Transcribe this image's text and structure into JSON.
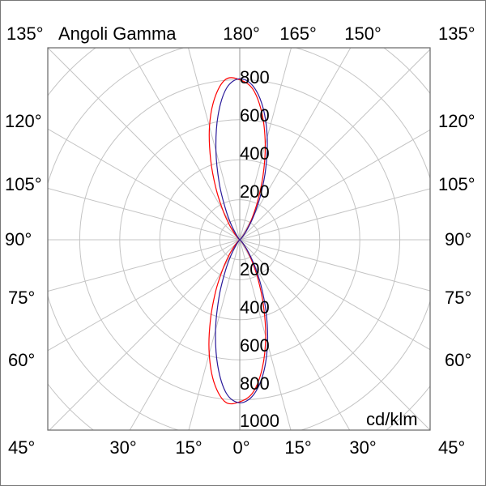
{
  "chart_data": {
    "type": "polar",
    "title": "Angoli Gamma",
    "unit": "cd/klm",
    "radial_ticks": [
      "200",
      "400",
      "600",
      "800",
      "1000"
    ],
    "radial_max": 1000,
    "grid": true,
    "angle_step_deg": 15,
    "top_labels": [
      "135°",
      "180°",
      "165°",
      "150°",
      "135°"
    ],
    "bottom_labels": [
      "45°",
      "30°",
      "15°",
      "0°",
      "15°",
      "30°",
      "45°"
    ],
    "side_labels": [
      "120°",
      "105°",
      "90°",
      "75°",
      "60°"
    ],
    "gamma": [
      0,
      5,
      10,
      15,
      20,
      25,
      30,
      35,
      40,
      45,
      50
    ],
    "series": [
      {
        "color": "#ff0000",
        "lower_left": [
          810,
          815,
          730,
          590,
          430,
          285,
          170,
          90,
          42,
          17,
          6
        ],
        "lower_right": [
          810,
          765,
          650,
          500,
          345,
          215,
          120,
          60,
          25,
          9,
          3
        ],
        "upper_left": [
          800,
          805,
          720,
          585,
          425,
          280,
          165,
          88,
          40,
          16,
          5
        ],
        "upper_right": [
          800,
          755,
          640,
          492,
          340,
          210,
          118,
          58,
          24,
          9,
          3
        ]
      },
      {
        "color": "#2a1a9a",
        "lower_left": [
          815,
          770,
          637,
          467,
          302,
          169,
          82,
          33,
          11,
          3,
          0
        ],
        "lower_right": [
          815,
          779,
          678,
          536,
          385,
          250,
          146,
          74,
          33,
          15,
          5
        ],
        "upper_left": [
          805,
          760,
          628,
          460,
          298,
          166,
          80,
          32,
          11,
          3,
          0
        ],
        "upper_right": [
          805,
          770,
          670,
          530,
          380,
          247,
          144,
          73,
          32,
          14,
          5
        ]
      }
    ]
  }
}
